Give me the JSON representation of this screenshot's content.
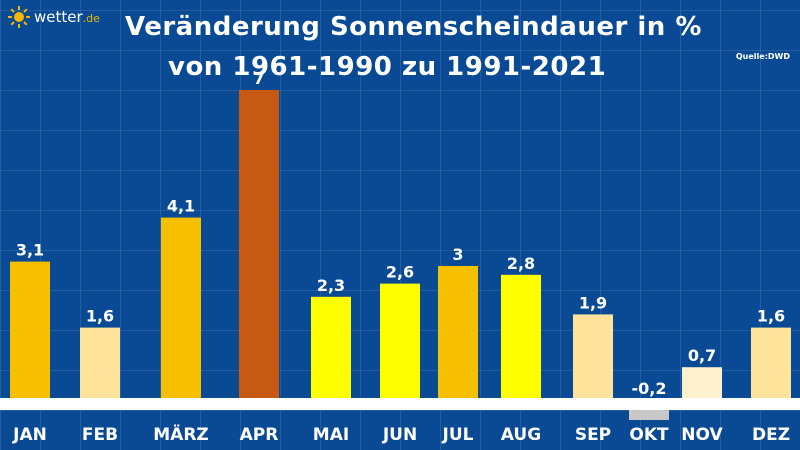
{
  "brand": {
    "name": "wetter",
    "tld": ".de"
  },
  "title_line1": "Veränderung Sonnenscheindauer in %",
  "title_line2": "von 1961-1990 zu 1991-2021",
  "source": "Quelle:DWD",
  "colors": {
    "background": "#0a4a94",
    "baseline": "#ffffff",
    "label": "#ffffff",
    "sun": "#f5b800"
  },
  "chart_data": {
    "type": "bar",
    "title": "Veränderung Sonnenscheindauer in % von 1961-1990 zu 1991-2021",
    "categories": [
      "JAN",
      "FEB",
      "MÄRZ",
      "APR",
      "MAI",
      "JUN",
      "JUL",
      "AUG",
      "SEP",
      "OKT",
      "NOV",
      "DEZ"
    ],
    "values": [
      3.1,
      1.6,
      4.1,
      7,
      2.3,
      2.6,
      3,
      2.8,
      1.9,
      -0.2,
      0.7,
      1.6
    ],
    "value_labels": [
      "3,1",
      "1,6",
      "4,1",
      "7",
      "2,3",
      "2,6",
      "3",
      "2,8",
      "1,9",
      "-0,2",
      "0,7",
      "1,6"
    ],
    "bar_colors": [
      "#f6bf00",
      "#fde49a",
      "#f6bf00",
      "#c65a12",
      "#ffff00",
      "#ffff00",
      "#f6bf00",
      "#ffff00",
      "#fde49a",
      "#c8c8c8",
      "#fdf0cc",
      "#fde49a"
    ],
    "ylim": [
      -0.3,
      7
    ],
    "xlabel": "",
    "ylabel": "",
    "grid": true,
    "legend": "none"
  }
}
